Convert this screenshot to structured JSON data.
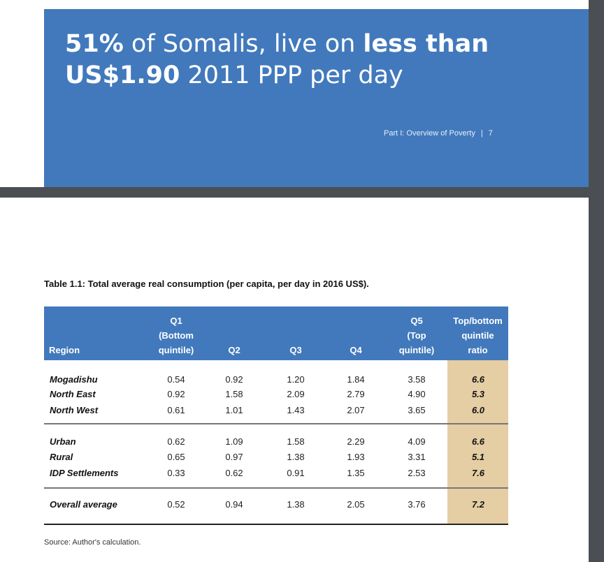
{
  "banner": {
    "headline_parts": [
      "51%",
      " of Somalis, live on ",
      "less than",
      "US$1.90",
      " 2011 PPP per day"
    ],
    "running_head": "Part I: Overview of Poverty",
    "page_number": "7"
  },
  "table": {
    "title": "Table 1.1: Total average real consumption (per capita, per day in 2016 US$).",
    "headers": {
      "region": "Region",
      "q1": [
        "Q1",
        "(Bottom",
        "quintile)"
      ],
      "q2": "Q2",
      "q3": "Q3",
      "q4": "Q4",
      "q5": [
        "Q5",
        "(Top",
        "quintile)"
      ],
      "ratio": [
        "Top/bottom",
        "quintile",
        "ratio"
      ]
    },
    "rows": [
      {
        "region": "Mogadishu",
        "values": [
          "0.54",
          "0.92",
          "1.20",
          "1.84",
          "3.58"
        ],
        "ratio": "6.6"
      },
      {
        "region": "North East",
        "values": [
          "0.92",
          "1.58",
          "2.09",
          "2.79",
          "4.90"
        ],
        "ratio": "5.3"
      },
      {
        "region": "North West",
        "values": [
          "0.61",
          "1.01",
          "1.43",
          "2.07",
          "3.65"
        ],
        "ratio": "6.0"
      },
      {
        "region": "Urban",
        "values": [
          "0.62",
          "1.09",
          "1.58",
          "2.29",
          "4.09"
        ],
        "ratio": "6.6"
      },
      {
        "region": "Rural",
        "values": [
          "0.65",
          "0.97",
          "1.38",
          "1.93",
          "3.31"
        ],
        "ratio": "5.1"
      },
      {
        "region": "IDP Settlements",
        "values": [
          "0.33",
          "0.62",
          "0.91",
          "1.35",
          "2.53"
        ],
        "ratio": "7.6"
      },
      {
        "region": "Overall average",
        "values": [
          "0.52",
          "0.94",
          "1.38",
          "2.05",
          "3.76"
        ],
        "ratio": "7.2"
      }
    ],
    "source": "Source: Author's calculation."
  },
  "colors": {
    "banner": "#4279bc",
    "highlight_column": "#e5cda4",
    "viewer_background": "#4b4f53"
  }
}
